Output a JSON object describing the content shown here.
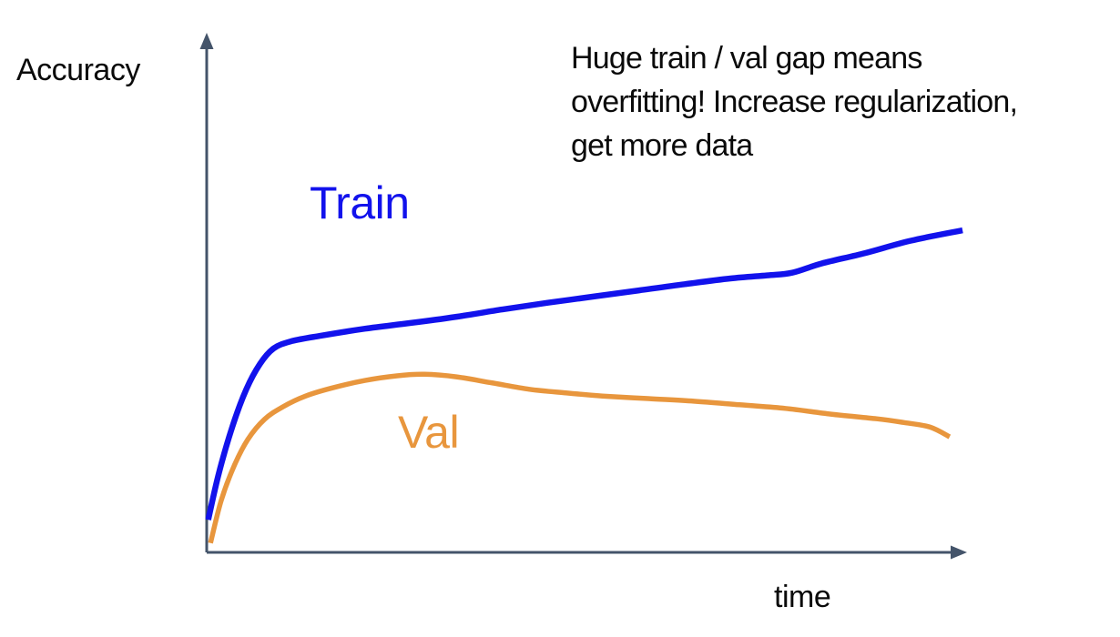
{
  "page": {
    "background": "#ffffff",
    "kind": "lecture-slide-sketch"
  },
  "chart_data": {
    "type": "line",
    "title": "",
    "xlabel": "time",
    "ylabel": "Accuracy",
    "grid": false,
    "ticks": "none",
    "x_range": [
      0,
      100
    ],
    "y_range": [
      0,
      100
    ],
    "axes": {
      "color": "#44546A",
      "x_arrow": true,
      "y_arrow": true
    },
    "annotation": {
      "text": "Huge train / val gap means overfitting! Increase regularization, get more data",
      "lines": [
        "Huge train / val gap means",
        "overfitting! Increase regularization,",
        "get more data"
      ],
      "color": "#0a0a0a",
      "position": "top-right"
    },
    "series": [
      {
        "name": "Train",
        "color": "#1212EC",
        "stroke_width": 6.5,
        "label_position": "above curve, upper-left area",
        "points": [
          [
            0.2,
            6.3
          ],
          [
            1.6,
            15.3
          ],
          [
            3.4,
            24.4
          ],
          [
            5.2,
            31.5
          ],
          [
            7.0,
            36.4
          ],
          [
            8.8,
            39.4
          ],
          [
            11.2,
            40.8
          ],
          [
            14.8,
            41.8
          ],
          [
            20.8,
            43.2
          ],
          [
            26.8,
            44.3
          ],
          [
            32.8,
            45.5
          ],
          [
            38.8,
            46.9
          ],
          [
            44.8,
            48.2
          ],
          [
            50.8,
            49.4
          ],
          [
            56.8,
            50.6
          ],
          [
            62.8,
            51.8
          ],
          [
            68.8,
            52.9
          ],
          [
            73.6,
            53.5
          ],
          [
            76.9,
            54.0
          ],
          [
            80.8,
            55.8
          ],
          [
            86.5,
            57.8
          ],
          [
            92.5,
            60.2
          ],
          [
            99.3,
            62.2
          ]
        ]
      },
      {
        "name": "Val",
        "color": "#E8963D",
        "stroke_width": 5.5,
        "label_position": "below curve, mid-left area",
        "points": [
          [
            0.5,
            1.8
          ],
          [
            1.9,
            10.0
          ],
          [
            3.6,
            16.7
          ],
          [
            5.4,
            21.8
          ],
          [
            7.6,
            25.7
          ],
          [
            10.0,
            28.1
          ],
          [
            13.0,
            30.2
          ],
          [
            16.6,
            31.8
          ],
          [
            20.8,
            33.2
          ],
          [
            25.0,
            34.1
          ],
          [
            28.6,
            34.4
          ],
          [
            32.8,
            33.9
          ],
          [
            37.6,
            32.7
          ],
          [
            42.4,
            31.5
          ],
          [
            47.2,
            30.8
          ],
          [
            52.0,
            30.2
          ],
          [
            58.0,
            29.7
          ],
          [
            64.0,
            29.2
          ],
          [
            70.0,
            28.5
          ],
          [
            76.0,
            27.8
          ],
          [
            82.0,
            26.7
          ],
          [
            88.0,
            25.8
          ],
          [
            91.5,
            25.1
          ],
          [
            95.0,
            24.2
          ],
          [
            97.6,
            22.3
          ]
        ]
      }
    ]
  }
}
